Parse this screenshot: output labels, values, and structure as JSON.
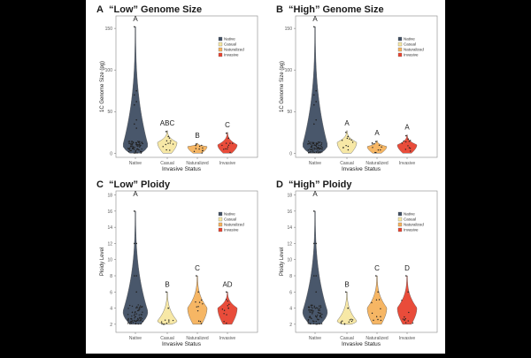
{
  "colors": {
    "native": "#3f4e63",
    "casual": "#f7e7a1",
    "naturalized": "#f6b25c",
    "invasive": "#e8422f",
    "background": "#ffffff",
    "text": "#1a1a1a"
  },
  "legend": [
    "Native",
    "Casual",
    "Naturalized",
    "Invasive"
  ],
  "chart_data": [
    {
      "panel": "A",
      "type": "violin",
      "title": "“Low” Genome Size",
      "xlabel": "Invasive Status",
      "ylabel": "1C Genome Size (pg)",
      "categories": [
        "Native",
        "Casual",
        "Naturalized",
        "Invasive"
      ],
      "yticks": [
        0,
        50,
        100,
        150
      ],
      "ylim": [
        -5,
        165
      ],
      "letters": [
        "A",
        "ABC",
        "B",
        "C"
      ],
      "max": [
        152,
        27,
        12,
        25
      ],
      "mode": [
        9,
        13,
        8,
        10
      ],
      "legend_labels": [
        "Native",
        "Casual",
        "Naturalized",
        "Invasive"
      ],
      "outliers": [
        [
          152,
          75,
          70,
          62,
          58,
          40,
          35,
          30
        ],
        [
          26,
          20
        ],
        [
          11
        ],
        [
          24,
          18
        ]
      ]
    },
    {
      "panel": "B",
      "type": "violin",
      "title": "“High” Genome Size",
      "xlabel": "Invasive Status",
      "ylabel": "1C Genome Size (pg)",
      "categories": [
        "Native",
        "Casual",
        "Naturalized",
        "Invasive"
      ],
      "yticks": [
        0,
        50,
        100,
        150
      ],
      "ylim": [
        -5,
        165
      ],
      "letters": [
        "A",
        "A",
        "A",
        "A"
      ],
      "max": [
        152,
        27,
        15,
        22
      ],
      "mode": [
        9,
        13,
        8,
        10
      ],
      "legend_labels": [
        "Native",
        "Casual",
        "Naturalized",
        "Invasive"
      ],
      "outliers": [
        [
          152,
          75,
          70,
          62,
          58,
          40,
          35
        ],
        [
          25,
          20
        ],
        [
          14
        ],
        [
          21,
          17
        ]
      ]
    },
    {
      "panel": "C",
      "type": "violin",
      "title": "“Low” Ploidy",
      "xlabel": "Invasive Status",
      "ylabel": "Ploidy Level",
      "categories": [
        "Native",
        "Casual",
        "Naturalized",
        "Invasive"
      ],
      "yticks": [
        2,
        4,
        6,
        8,
        10,
        12,
        14,
        16,
        18
      ],
      "ylim": [
        1,
        18.5
      ],
      "letters": [
        "A",
        "B",
        "C",
        "AD"
      ],
      "max": [
        16,
        6,
        8,
        6
      ],
      "mode": [
        3.5,
        2.4,
        4,
        4
      ],
      "legend_labels": [
        "Native",
        "Casual",
        "Naturalized",
        "Invasive"
      ],
      "outliers": [
        [
          16,
          12,
          12,
          8,
          8,
          6
        ],
        [
          6,
          4
        ],
        [
          8,
          6
        ],
        [
          6,
          4
        ]
      ]
    },
    {
      "panel": "D",
      "type": "violin",
      "title": "“High” Ploidy",
      "xlabel": "Invasive Status",
      "ylabel": "Ploidy Level",
      "categories": [
        "Native",
        "Casual",
        "Naturalized",
        "Invasive"
      ],
      "yticks": [
        2,
        4,
        6,
        8,
        10,
        12,
        14,
        16,
        18
      ],
      "ylim": [
        1,
        18.5
      ],
      "letters": [
        "A",
        "B",
        "C",
        "D"
      ],
      "max": [
        16,
        6,
        8,
        8
      ],
      "mode": [
        3.5,
        2.4,
        4,
        4
      ],
      "legend_labels": [
        "Native",
        "Casual",
        "Naturalized",
        "Invasive"
      ],
      "outliers": [
        [
          16,
          12,
          12,
          8,
          8,
          6
        ],
        [
          6,
          4
        ],
        [
          8,
          6
        ],
        [
          8,
          6
        ]
      ]
    }
  ]
}
